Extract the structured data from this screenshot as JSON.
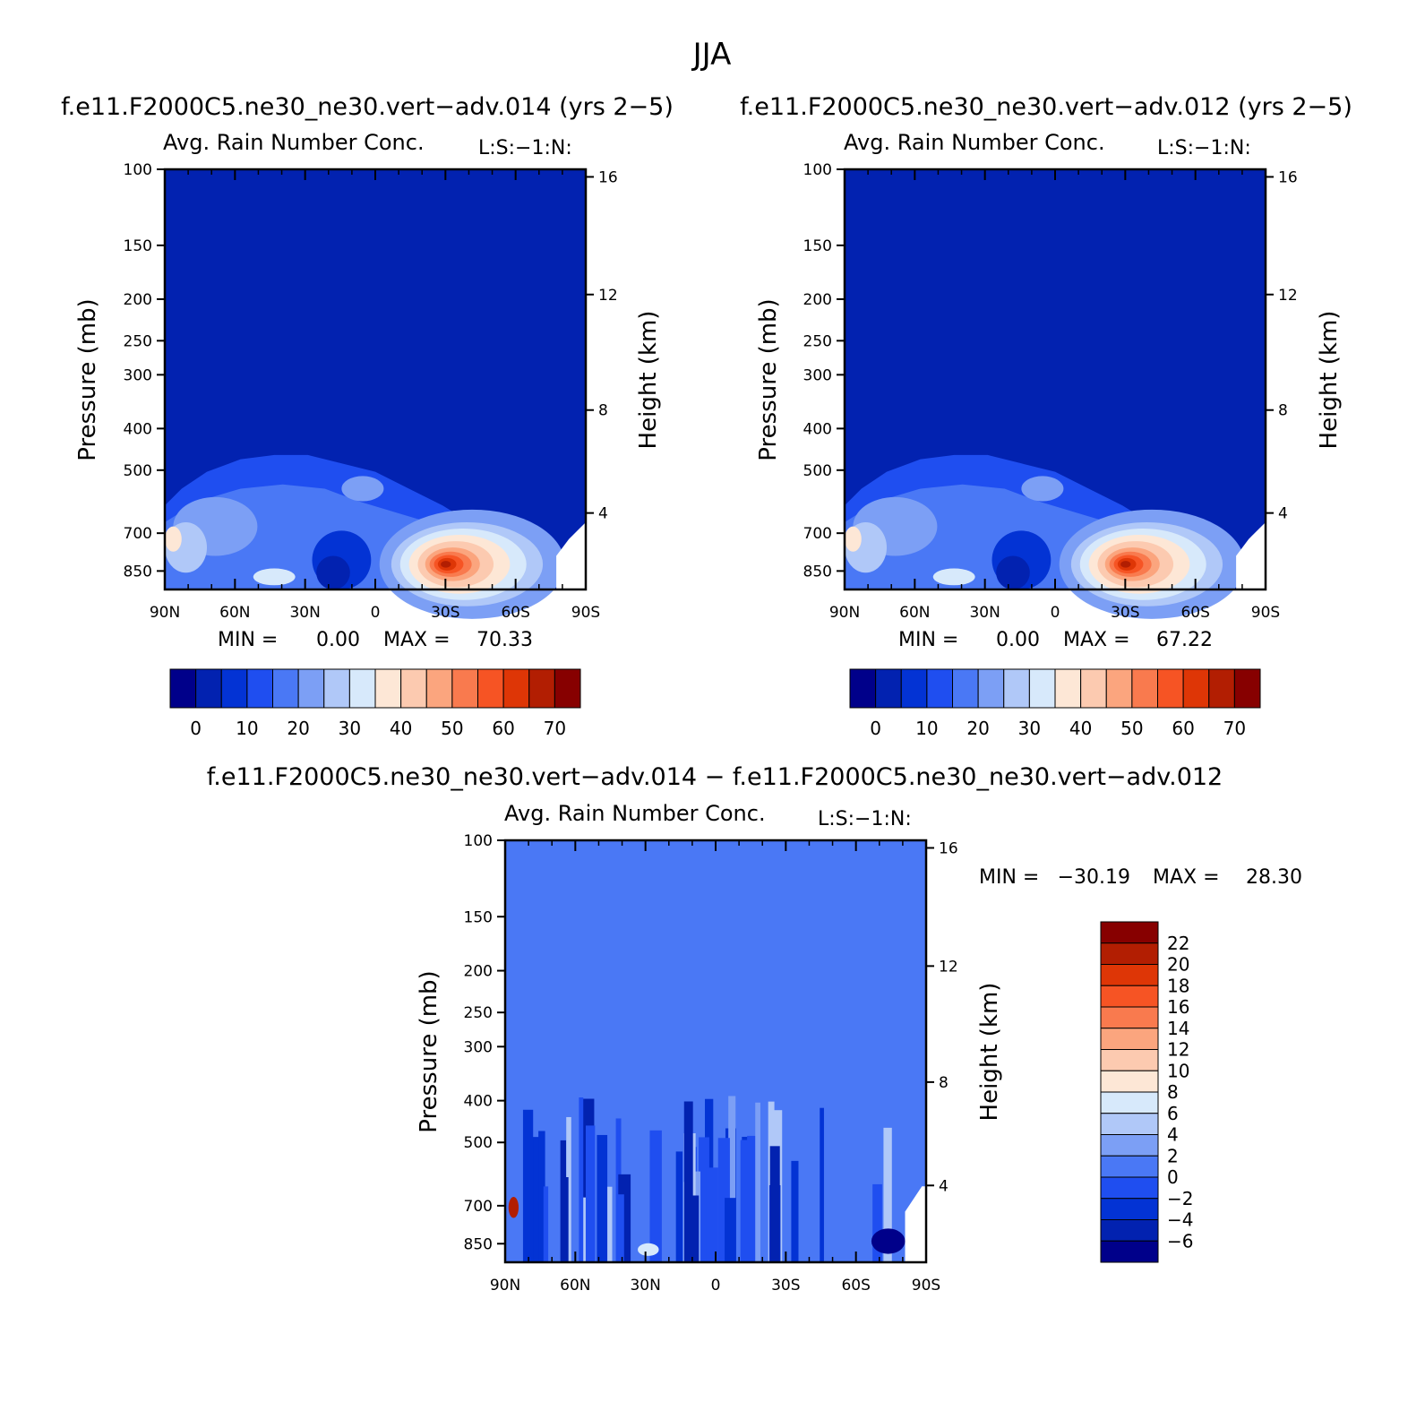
{
  "figure_title": "JJA",
  "chart_data": [
    {
      "type": "heatmap",
      "id": "p1",
      "case_title": "f.e11.F2000C5.ne30_ne30.vert−adv.014 (yrs 2−5)",
      "title": "Avg. Rain Number Conc.",
      "right_label": "L:S:−1:N:",
      "ylabel": "Pressure (mb)",
      "ylabel_right": "Height (km)",
      "x_ticks": [
        "90N",
        "60N",
        "30N",
        "0",
        "30S",
        "60S",
        "90S"
      ],
      "y_ticks": [
        "100",
        "150",
        "200",
        "250",
        "300",
        "400",
        "500",
        "700",
        "850"
      ],
      "y2_ticks": [
        "16",
        "12",
        "8",
        "4"
      ],
      "stats": {
        "min_label": "MIN =",
        "min": "0.00",
        "max_label": "MAX =",
        "max": "70.33"
      },
      "colorbar_labels": [
        "0",
        "10",
        "20",
        "30",
        "40",
        "50",
        "60",
        "70"
      ],
      "colors": [
        "#00008a",
        "#0222b0",
        "#0333d4",
        "#1f4ef0",
        "#4a78f5",
        "#7c9ff5",
        "#b0c8f8",
        "#d7e9fb",
        "#fde7d6",
        "#fccab0",
        "#fba57e",
        "#f97a4e",
        "#f65424",
        "#de3606",
        "#b21e02",
        "#870000"
      ]
    },
    {
      "type": "heatmap",
      "id": "p2",
      "case_title": "f.e11.F2000C5.ne30_ne30.vert−adv.012 (yrs 2−5)",
      "title": "Avg. Rain Number Conc.",
      "right_label": "L:S:−1:N:",
      "ylabel": "Pressure (mb)",
      "ylabel_right": "Height (km)",
      "x_ticks": [
        "90N",
        "60N",
        "30N",
        "0",
        "30S",
        "60S",
        "90S"
      ],
      "y_ticks": [
        "100",
        "150",
        "200",
        "250",
        "300",
        "400",
        "500",
        "700",
        "850"
      ],
      "y2_ticks": [
        "16",
        "12",
        "8",
        "4"
      ],
      "stats": {
        "min_label": "MIN =",
        "min": "0.00",
        "max_label": "MAX =",
        "max": "67.22"
      },
      "colorbar_labels": [
        "0",
        "10",
        "20",
        "30",
        "40",
        "50",
        "60",
        "70"
      ],
      "colors": [
        "#00008a",
        "#0222b0",
        "#0333d4",
        "#1f4ef0",
        "#4a78f5",
        "#7c9ff5",
        "#b0c8f8",
        "#d7e9fb",
        "#fde7d6",
        "#fccab0",
        "#fba57e",
        "#f97a4e",
        "#f65424",
        "#de3606",
        "#b21e02",
        "#870000"
      ]
    },
    {
      "type": "heatmap",
      "id": "p3",
      "case_title": "f.e11.F2000C5.ne30_ne30.vert−adv.014 − f.e11.F2000C5.ne30_ne30.vert−adv.012",
      "title": "Avg. Rain Number Conc.",
      "right_label": "L:S:−1:N:",
      "ylabel": "Pressure (mb)",
      "ylabel_right": "Height (km)",
      "x_ticks": [
        "90N",
        "60N",
        "30N",
        "0",
        "30S",
        "60S",
        "90S"
      ],
      "y_ticks": [
        "100",
        "150",
        "200",
        "250",
        "300",
        "400",
        "500",
        "700",
        "850"
      ],
      "y2_ticks": [
        "16",
        "12",
        "8",
        "4"
      ],
      "stats": {
        "min_label": "MIN =",
        "min": "−30.19",
        "max_label": "MAX =",
        "max": "28.30"
      },
      "colorbar_labels": [
        "22",
        "20",
        "18",
        "16",
        "14",
        "12",
        "10",
        "8",
        "6",
        "4",
        "2",
        "0",
        "−2",
        "−4",
        "−6"
      ],
      "colors": [
        "#870000",
        "#b21e02",
        "#de3606",
        "#f65424",
        "#f97a4e",
        "#fba57e",
        "#fccab0",
        "#fde7d6",
        "#d7e9fb",
        "#b0c8f8",
        "#7c9ff5",
        "#4a78f5",
        "#1f4ef0",
        "#0333d4",
        "#0222b0",
        "#00008a"
      ]
    }
  ]
}
